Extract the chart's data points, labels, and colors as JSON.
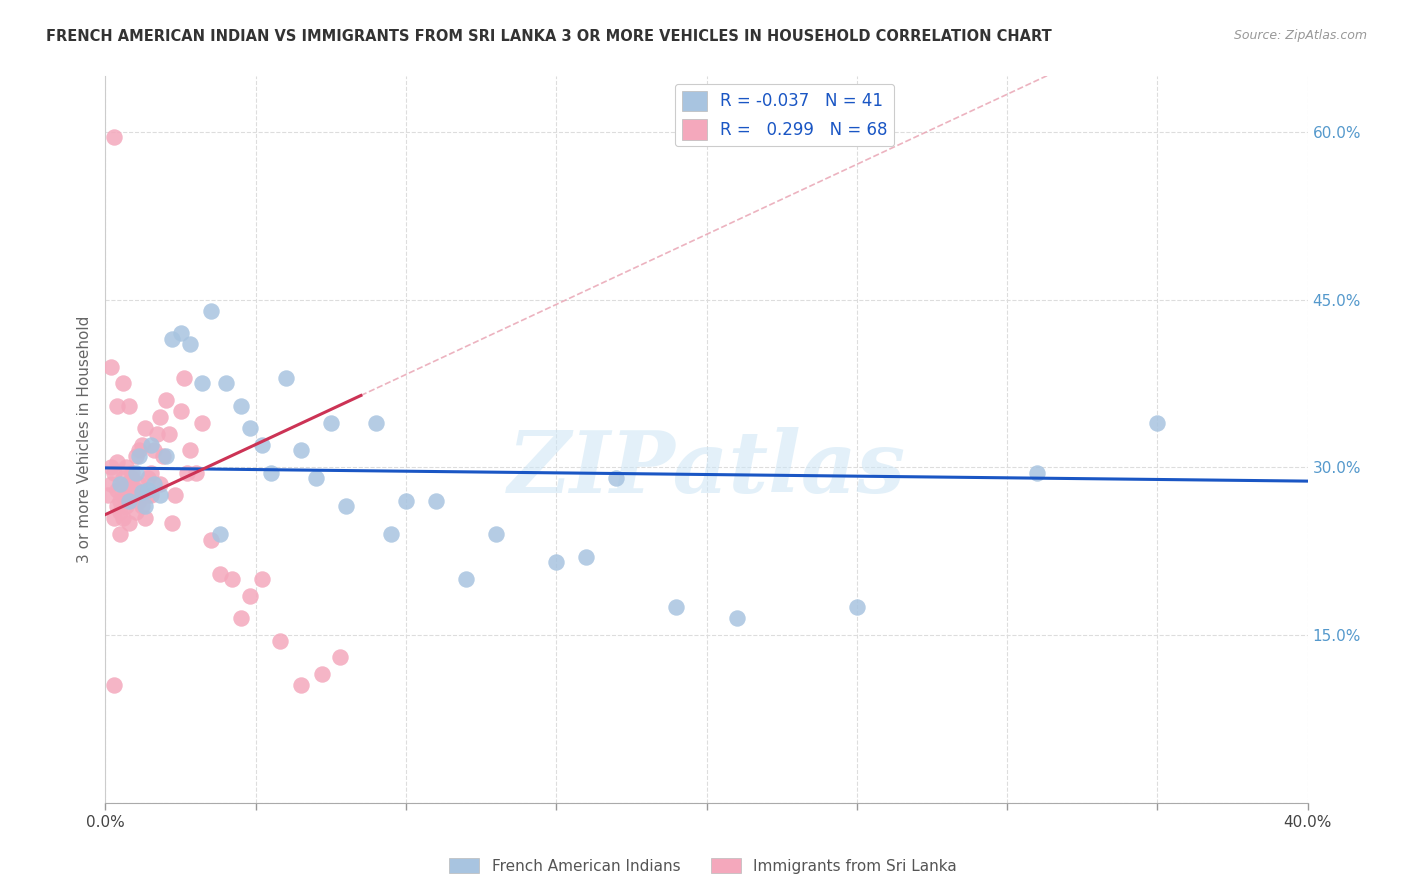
{
  "title": "FRENCH AMERICAN INDIAN VS IMMIGRANTS FROM SRI LANKA 3 OR MORE VEHICLES IN HOUSEHOLD CORRELATION CHART",
  "source": "Source: ZipAtlas.com",
  "ylabel": "3 or more Vehicles in Household",
  "xlim": [
    0.0,
    0.4
  ],
  "ylim": [
    0.0,
    0.65
  ],
  "xticks": [
    0.0,
    0.05,
    0.1,
    0.15,
    0.2,
    0.25,
    0.3,
    0.35,
    0.4
  ],
  "yticks_right": [
    0.0,
    0.15,
    0.3,
    0.45,
    0.6
  ],
  "blue_R": -0.037,
  "blue_N": 41,
  "pink_R": 0.299,
  "pink_N": 68,
  "legend1_label": "French American Indians",
  "legend2_label": "Immigrants from Sri Lanka",
  "blue_color": "#a8c4e0",
  "pink_color": "#f4a8bc",
  "trend_blue_color": "#1a56c4",
  "trend_pink_color": "#cc3355",
  "diag_color": "#e8a0b0",
  "watermark": "ZIPatlas",
  "blue_x": [
    0.005,
    0.008,
    0.01,
    0.011,
    0.012,
    0.013,
    0.014,
    0.015,
    0.016,
    0.018,
    0.02,
    0.022,
    0.025,
    0.028,
    0.032,
    0.035,
    0.04,
    0.045,
    0.052,
    0.055,
    0.06,
    0.065,
    0.07,
    0.075,
    0.08,
    0.09,
    0.095,
    0.1,
    0.11,
    0.12,
    0.13,
    0.15,
    0.16,
    0.17,
    0.19,
    0.21,
    0.25,
    0.31,
    0.35,
    0.038,
    0.048
  ],
  "blue_y": [
    0.285,
    0.27,
    0.295,
    0.31,
    0.278,
    0.265,
    0.28,
    0.32,
    0.285,
    0.275,
    0.31,
    0.415,
    0.42,
    0.41,
    0.375,
    0.44,
    0.375,
    0.355,
    0.32,
    0.295,
    0.38,
    0.315,
    0.29,
    0.34,
    0.265,
    0.34,
    0.24,
    0.27,
    0.27,
    0.2,
    0.24,
    0.215,
    0.22,
    0.29,
    0.175,
    0.165,
    0.175,
    0.295,
    0.34,
    0.24,
    0.335
  ],
  "pink_x": [
    0.001,
    0.002,
    0.002,
    0.003,
    0.003,
    0.003,
    0.004,
    0.004,
    0.004,
    0.005,
    0.005,
    0.005,
    0.006,
    0.006,
    0.006,
    0.007,
    0.007,
    0.007,
    0.008,
    0.008,
    0.008,
    0.009,
    0.009,
    0.009,
    0.01,
    0.01,
    0.01,
    0.011,
    0.011,
    0.011,
    0.012,
    0.012,
    0.013,
    0.013,
    0.014,
    0.014,
    0.015,
    0.015,
    0.016,
    0.017,
    0.018,
    0.018,
    0.019,
    0.02,
    0.021,
    0.022,
    0.023,
    0.025,
    0.026,
    0.027,
    0.028,
    0.03,
    0.032,
    0.035,
    0.038,
    0.042,
    0.045,
    0.048,
    0.052,
    0.058,
    0.065,
    0.072,
    0.078,
    0.002,
    0.004,
    0.006,
    0.008,
    0.003
  ],
  "pink_y": [
    0.275,
    0.285,
    0.3,
    0.255,
    0.295,
    0.595,
    0.28,
    0.265,
    0.305,
    0.27,
    0.26,
    0.24,
    0.29,
    0.275,
    0.255,
    0.285,
    0.265,
    0.3,
    0.25,
    0.27,
    0.285,
    0.275,
    0.29,
    0.295,
    0.28,
    0.26,
    0.31,
    0.285,
    0.27,
    0.315,
    0.265,
    0.32,
    0.255,
    0.335,
    0.275,
    0.29,
    0.295,
    0.275,
    0.315,
    0.33,
    0.345,
    0.285,
    0.31,
    0.36,
    0.33,
    0.25,
    0.275,
    0.35,
    0.38,
    0.295,
    0.315,
    0.295,
    0.34,
    0.235,
    0.205,
    0.2,
    0.165,
    0.185,
    0.2,
    0.145,
    0.105,
    0.115,
    0.13,
    0.39,
    0.355,
    0.375,
    0.355,
    0.105
  ]
}
